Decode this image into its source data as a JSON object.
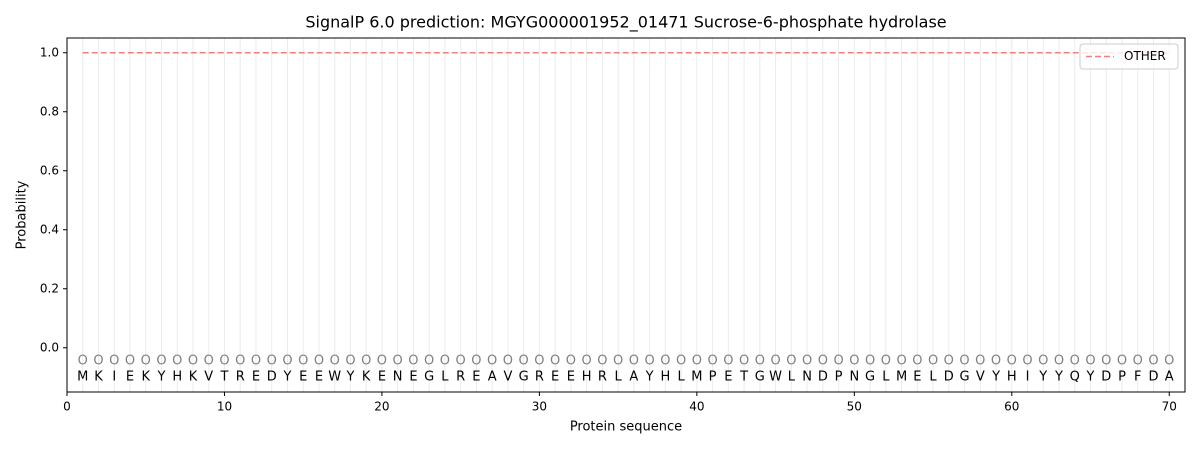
{
  "chart_data": {
    "type": "line",
    "title": "SignalP 6.0 prediction: MGYG000001952_01471 Sucrose-6-phosphate hydrolase",
    "x_label": "Protein sequence",
    "y_label": "Probability",
    "x": [
      1,
      2,
      3,
      4,
      5,
      6,
      7,
      8,
      9,
      10,
      11,
      12,
      13,
      14,
      15,
      16,
      17,
      18,
      19,
      20,
      21,
      22,
      23,
      24,
      25,
      26,
      27,
      28,
      29,
      30,
      31,
      32,
      33,
      34,
      35,
      36,
      37,
      38,
      39,
      40,
      41,
      42,
      43,
      44,
      45,
      46,
      47,
      48,
      49,
      50,
      51,
      52,
      53,
      54,
      55,
      56,
      57,
      58,
      59,
      60,
      61,
      62,
      63,
      64,
      65,
      66,
      67,
      68,
      69,
      70
    ],
    "residues": [
      "M",
      "K",
      "I",
      "E",
      "K",
      "Y",
      "H",
      "K",
      "V",
      "T",
      "R",
      "E",
      "D",
      "Y",
      "E",
      "E",
      "W",
      "Y",
      "K",
      "E",
      "N",
      "E",
      "G",
      "L",
      "R",
      "E",
      "A",
      "V",
      "G",
      "R",
      "E",
      "E",
      "H",
      "R",
      "L",
      "A",
      "Y",
      "H",
      "L",
      "M",
      "P",
      "E",
      "T",
      "G",
      "W",
      "L",
      "N",
      "D",
      "P",
      "N",
      "G",
      "L",
      "M",
      "E",
      "L",
      "D",
      "G",
      "V",
      "Y",
      "H",
      "I",
      "Y",
      "Y",
      "Q",
      "Y",
      "D",
      "P",
      "F",
      "D",
      "A"
    ],
    "labels": [
      "O",
      "O",
      "O",
      "O",
      "O",
      "O",
      "O",
      "O",
      "O",
      "O",
      "O",
      "O",
      "O",
      "O",
      "O",
      "O",
      "O",
      "O",
      "O",
      "O",
      "O",
      "O",
      "O",
      "O",
      "O",
      "O",
      "O",
      "O",
      "O",
      "O",
      "O",
      "O",
      "O",
      "O",
      "O",
      "O",
      "O",
      "O",
      "O",
      "O",
      "O",
      "O",
      "O",
      "O",
      "O",
      "O",
      "O",
      "O",
      "O",
      "O",
      "O",
      "O",
      "O",
      "O",
      "O",
      "O",
      "O",
      "O",
      "O",
      "O",
      "O",
      "O",
      "O",
      "O",
      "O",
      "O",
      "O",
      "O",
      "O",
      "O"
    ],
    "series": [
      {
        "name": "OTHER",
        "color": "#f08080",
        "values": [
          1,
          1,
          1,
          1,
          1,
          1,
          1,
          1,
          1,
          1,
          1,
          1,
          1,
          1,
          1,
          1,
          1,
          1,
          1,
          1,
          1,
          1,
          1,
          1,
          1,
          1,
          1,
          1,
          1,
          1,
          1,
          1,
          1,
          1,
          1,
          1,
          1,
          1,
          1,
          1,
          1,
          1,
          1,
          1,
          1,
          1,
          1,
          1,
          1,
          1,
          1,
          1,
          1,
          1,
          1,
          1,
          1,
          1,
          1,
          1,
          1,
          1,
          1,
          1,
          1,
          1,
          1,
          1,
          1,
          1
        ]
      }
    ],
    "xlim": [
      0,
      71
    ],
    "ylim": [
      -0.15,
      1.05
    ],
    "xticks": [
      0,
      10,
      20,
      30,
      40,
      50,
      60,
      70
    ],
    "yticks": [
      {
        "value": 0,
        "label": "0.0"
      },
      {
        "value": 0.2,
        "label": "0.2"
      },
      {
        "value": 0.4,
        "label": "0.4"
      },
      {
        "value": 0.6,
        "label": "0.6"
      },
      {
        "value": 0.8,
        "label": "0.8"
      },
      {
        "value": 1,
        "label": "1.0"
      }
    ],
    "legend": "upper right"
  }
}
